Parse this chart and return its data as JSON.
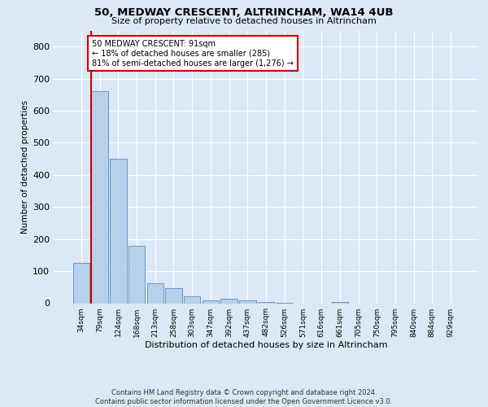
{
  "title1": "50, MEDWAY CRESCENT, ALTRINCHAM, WA14 4UB",
  "title2": "Size of property relative to detached houses in Altrincham",
  "xlabel": "Distribution of detached houses by size in Altrincham",
  "ylabel": "Number of detached properties",
  "categories": [
    "34sqm",
    "79sqm",
    "124sqm",
    "168sqm",
    "213sqm",
    "258sqm",
    "303sqm",
    "347sqm",
    "392sqm",
    "437sqm",
    "482sqm",
    "526sqm",
    "571sqm",
    "616sqm",
    "661sqm",
    "705sqm",
    "750sqm",
    "795sqm",
    "840sqm",
    "884sqm",
    "929sqm"
  ],
  "values": [
    125,
    660,
    450,
    180,
    62,
    47,
    22,
    10,
    13,
    8,
    5,
    1,
    0,
    0,
    5,
    0,
    0,
    0,
    0,
    0,
    0
  ],
  "bar_color": "#b8d0ea",
  "bar_edge_color": "#6699cc",
  "highlight_color": "#cc0000",
  "annotation_text": "50 MEDWAY CRESCENT: 91sqm\n← 18% of detached houses are smaller (285)\n81% of semi-detached houses are larger (1,276) →",
  "annotation_box_color": "#ffffff",
  "annotation_box_edge": "#cc0000",
  "ylim": [
    0,
    850
  ],
  "yticks": [
    0,
    100,
    200,
    300,
    400,
    500,
    600,
    700,
    800
  ],
  "footer": "Contains HM Land Registry data © Crown copyright and database right 2024.\nContains public sector information licensed under the Open Government Licence v3.0.",
  "bg_color": "#dce8f5",
  "plot_bg_color": "#dce8f5"
}
